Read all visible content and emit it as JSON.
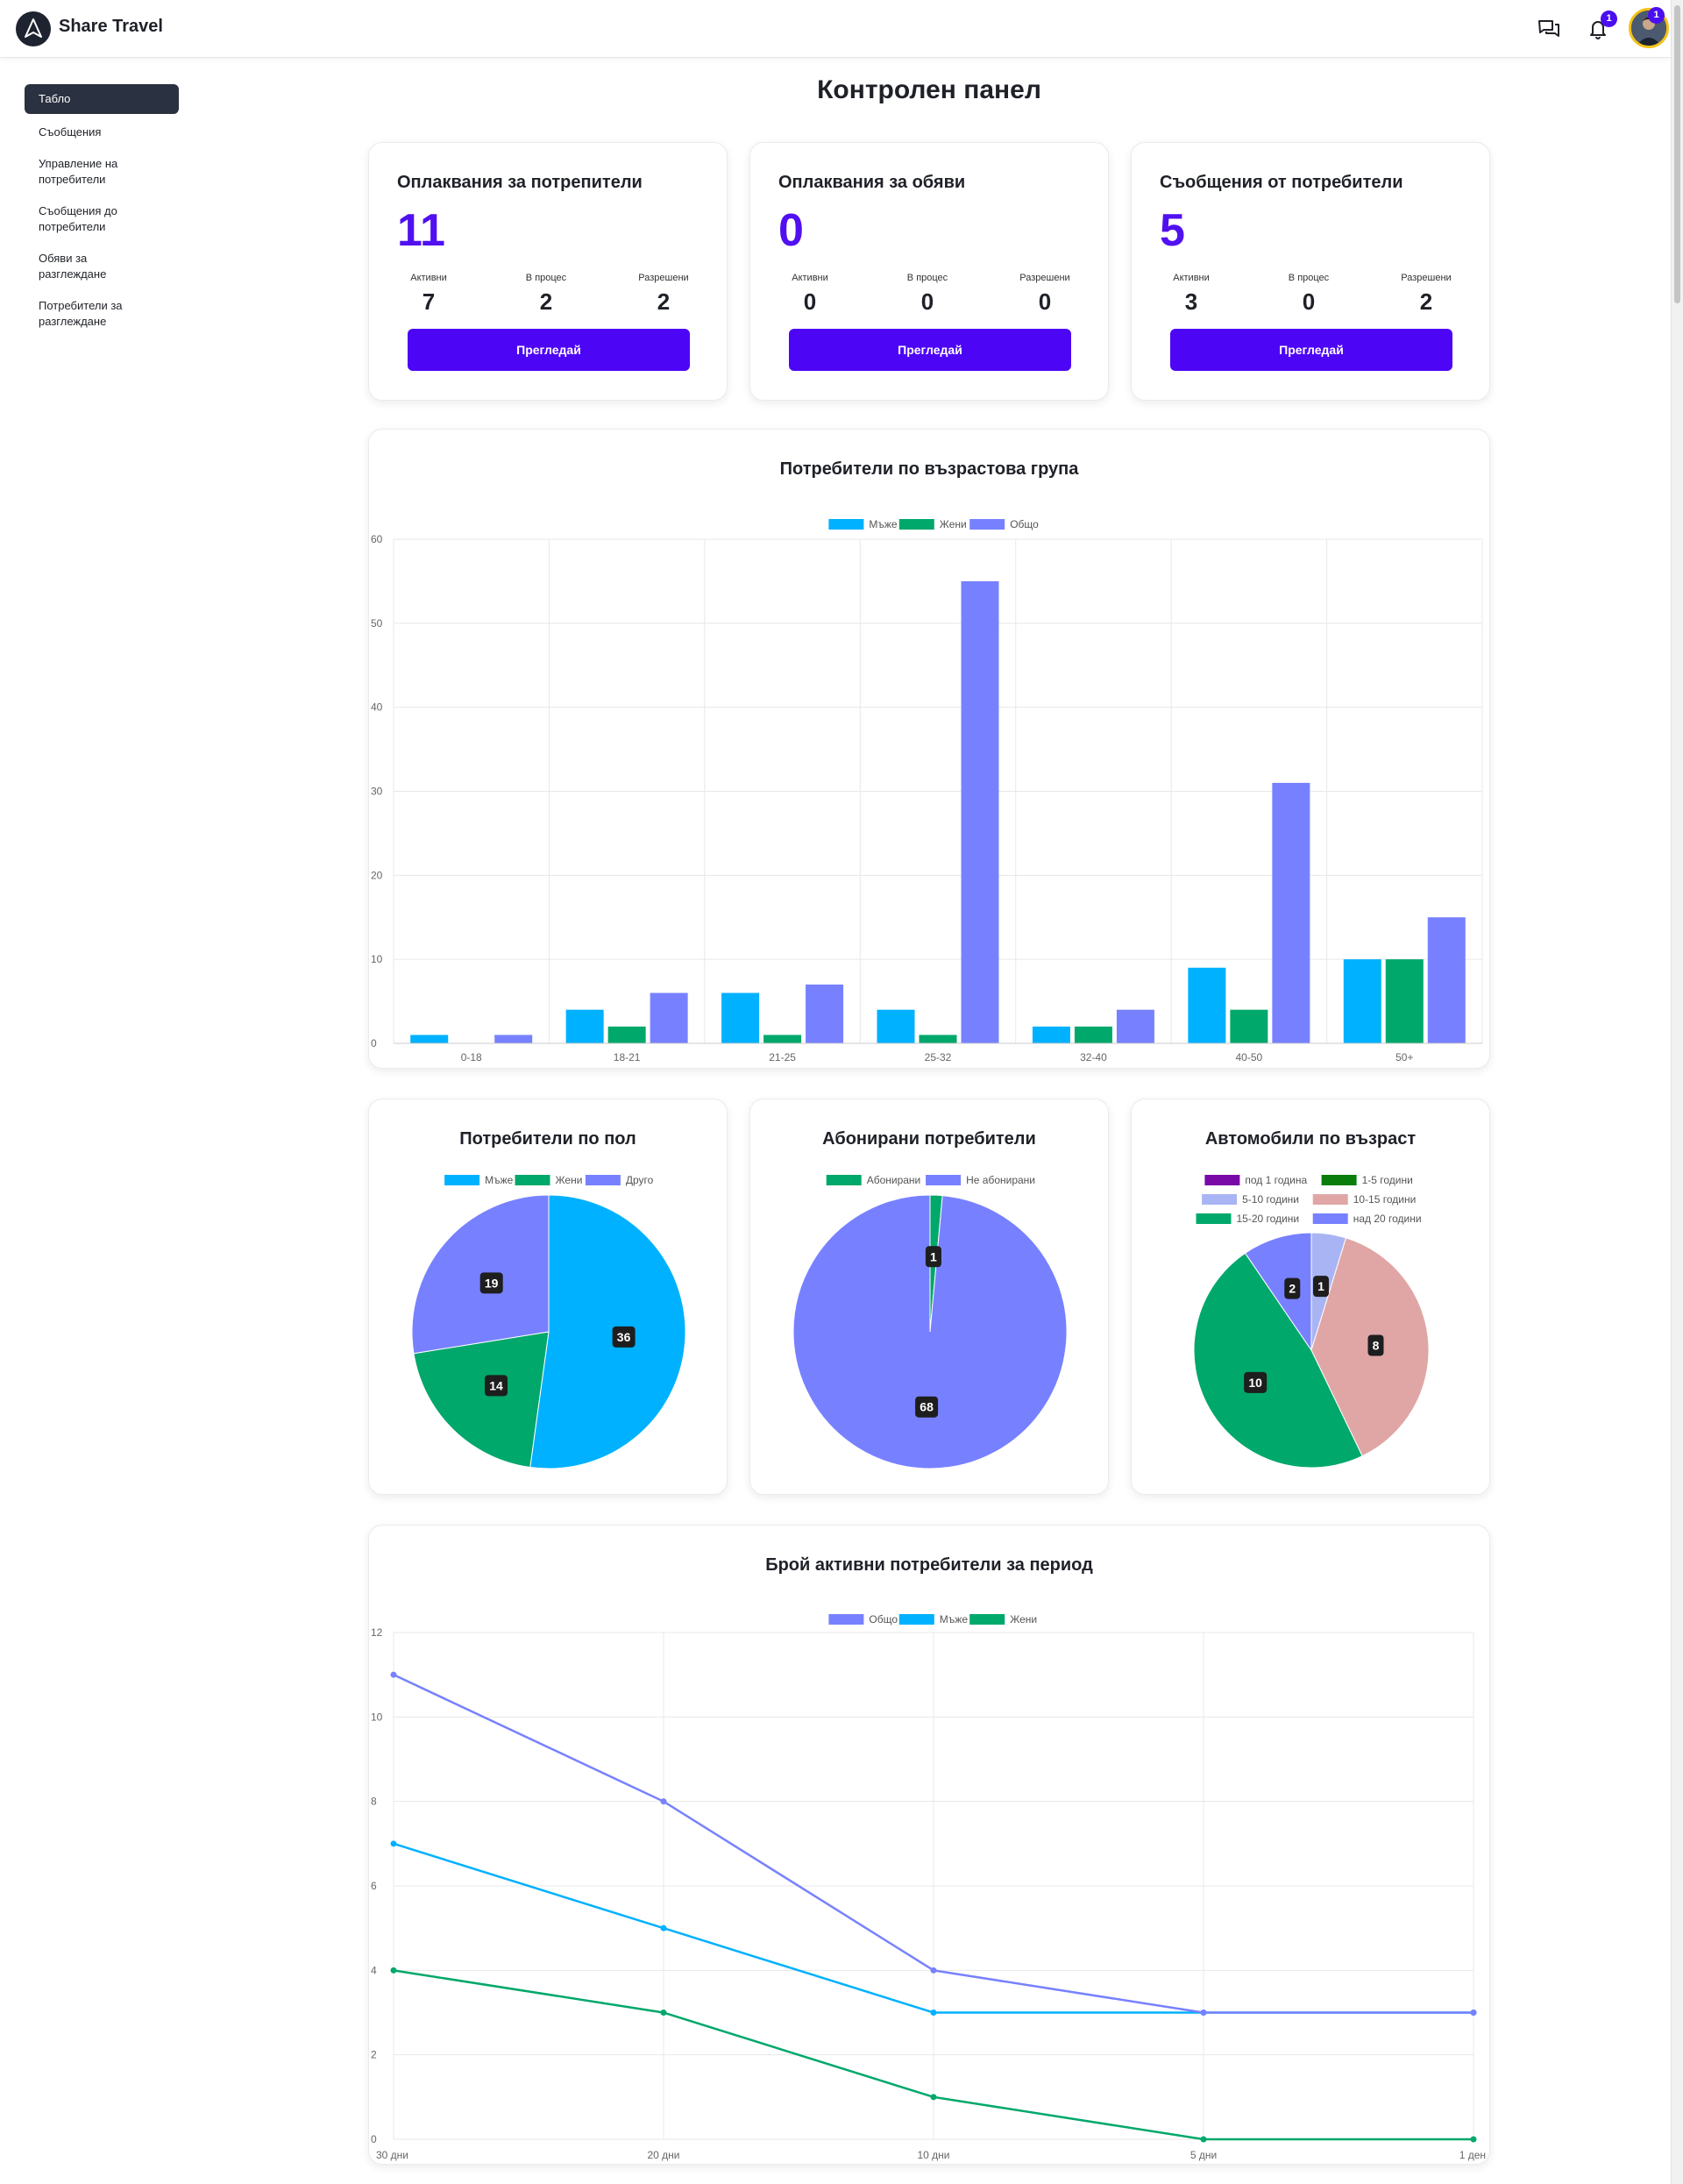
{
  "app": {
    "brand": "Share Travel",
    "messages_badge": "1",
    "notifications_badge": "1",
    "avatar_badge": "1"
  },
  "sidebar": {
    "items": [
      {
        "label": "Табло",
        "active": true
      },
      {
        "label": "Съобщения",
        "active": false
      },
      {
        "label": "Управление на потребители",
        "active": false
      },
      {
        "label": "Съобщения до потребители",
        "active": false
      },
      {
        "label": "Обяви за разглеждане",
        "active": false
      },
      {
        "label": "Потребители за разглеждане",
        "active": false
      }
    ]
  },
  "page": {
    "title": "Контролен панел"
  },
  "stats": [
    {
      "title": "Оплаквания за потрепители",
      "total": "11",
      "labels": [
        "Активни",
        "В процес",
        "Разрешени"
      ],
      "values": [
        "7",
        "2",
        "2"
      ],
      "button": "Прегледай"
    },
    {
      "title": "Оплаквания за обяви",
      "total": "0",
      "labels": [
        "Активни",
        "В процес",
        "Разрешени"
      ],
      "values": [
        "0",
        "0",
        "0"
      ],
      "button": "Прегледай"
    },
    {
      "title": "Съобщения от потребители",
      "total": "5",
      "labels": [
        "Активни",
        "В процес",
        "Разрешени"
      ],
      "values": [
        "3",
        "0",
        "2"
      ],
      "button": "Прегледай"
    }
  ],
  "colors": {
    "men": "#00b1ff",
    "women": "#00a86b",
    "total": "#7781ff",
    "accent": "#4d05f5"
  },
  "chart_data": [
    {
      "id": "age",
      "type": "bar",
      "title": "Потребители по възрастова група",
      "categories": [
        "0-18",
        "18-21",
        "21-25",
        "25-32",
        "32-40",
        "40-50",
        "50+"
      ],
      "series": [
        {
          "name": "Мъже",
          "color": "#00b1ff",
          "values": [
            1,
            4,
            6,
            4,
            2,
            9,
            10
          ]
        },
        {
          "name": "Жени",
          "color": "#00a86b",
          "values": [
            0,
            2,
            1,
            1,
            2,
            4,
            10
          ]
        },
        {
          "name": "Общо",
          "color": "#7781ff",
          "values": [
            1,
            6,
            7,
            55,
            4,
            31,
            15
          ]
        }
      ],
      "ylim": [
        0,
        60
      ],
      "yticks": [
        0,
        10,
        20,
        30,
        40,
        50,
        60
      ],
      "grid": true,
      "legend": "top"
    },
    {
      "id": "gender",
      "type": "pie",
      "title": "Потребители по пол",
      "slices": [
        {
          "name": "Мъже",
          "value": 36,
          "color": "#00b1ff"
        },
        {
          "name": "Жени",
          "value": 14,
          "color": "#00a86b"
        },
        {
          "name": "Друго",
          "value": 19,
          "color": "#7781ff"
        }
      ],
      "legend": "top"
    },
    {
      "id": "subs",
      "type": "pie",
      "title": "Абонирани потребители",
      "slices": [
        {
          "name": "Абонирани",
          "value": 1,
          "color": "#00a86b"
        },
        {
          "name": "Не абонирани",
          "value": 68,
          "color": "#7781ff"
        }
      ],
      "legend": "top"
    },
    {
      "id": "cars",
      "type": "pie",
      "title": "Автомобили по възраст",
      "slices": [
        {
          "name": "под 1 година",
          "value": 0,
          "color": "#7a0aa8"
        },
        {
          "name": "1-5 години",
          "value": 0,
          "color": "#0a7d0a"
        },
        {
          "name": "5-10 години",
          "value": 1,
          "color": "#a9b4f5"
        },
        {
          "name": "10-15 години",
          "value": 8,
          "color": "#e0a6a6"
        },
        {
          "name": "15-20 години",
          "value": 10,
          "color": "#00a86b"
        },
        {
          "name": "над 20 години",
          "value": 2,
          "color": "#7781ff"
        }
      ],
      "legend": "top"
    },
    {
      "id": "active",
      "type": "line",
      "title": "Брой активни потребители за период",
      "x": [
        "30 дни",
        "20 дни",
        "10 дни",
        "5 дни",
        "1 ден"
      ],
      "series": [
        {
          "name": "Общо",
          "color": "#7781ff",
          "values": [
            11,
            8,
            4,
            3,
            3
          ]
        },
        {
          "name": "Мъже",
          "color": "#00b1ff",
          "values": [
            7,
            5,
            3,
            3,
            3
          ]
        },
        {
          "name": "Жени",
          "color": "#00a86b",
          "values": [
            4,
            3,
            1,
            0,
            0
          ]
        }
      ],
      "ylim": [
        0,
        12
      ],
      "yticks": [
        0,
        2,
        4,
        6,
        8,
        10,
        12
      ],
      "grid": true,
      "legend": "top"
    }
  ]
}
